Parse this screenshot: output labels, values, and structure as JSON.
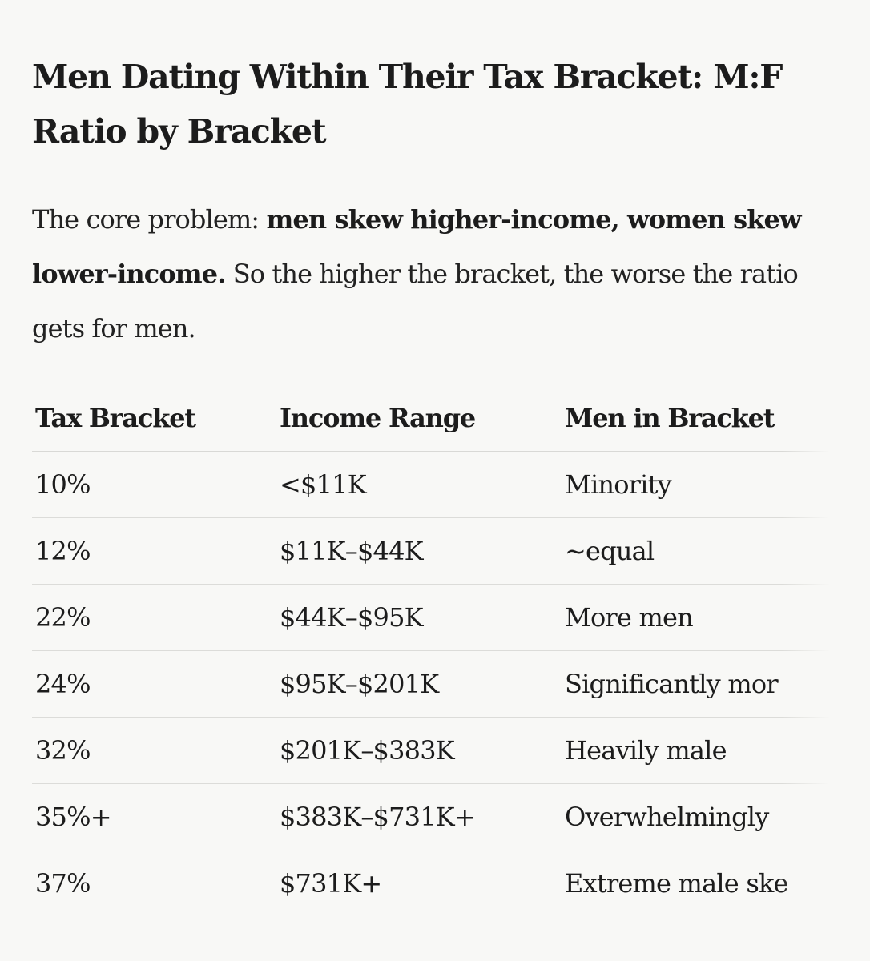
{
  "article": {
    "title": "Men Dating Within Their Tax Bracket: M:F Ratio by Bracket",
    "intro": {
      "lead": "The core problem: ",
      "bold": "men skew higher-income, women skew lower-income.",
      "rest": " So the higher the bracket, the worse the ratio gets for men."
    }
  },
  "table": {
    "headers": [
      "Tax Bracket",
      "Income Range",
      "Men in Bracket"
    ],
    "rows": [
      [
        "10%",
        "<$11K",
        "Minority"
      ],
      [
        "12%",
        "$11K–$44K",
        "~equal"
      ],
      [
        "22%",
        "$44K–$95K",
        "More men"
      ],
      [
        "24%",
        "$95K–$201K",
        "Significantly mor"
      ],
      [
        "32%",
        "$201K–$383K",
        "Heavily male"
      ],
      [
        "35%+",
        "$383K–$731K+",
        "Overwhelmingly"
      ],
      [
        "37%",
        "$731K+",
        "Extreme male ske"
      ]
    ]
  }
}
